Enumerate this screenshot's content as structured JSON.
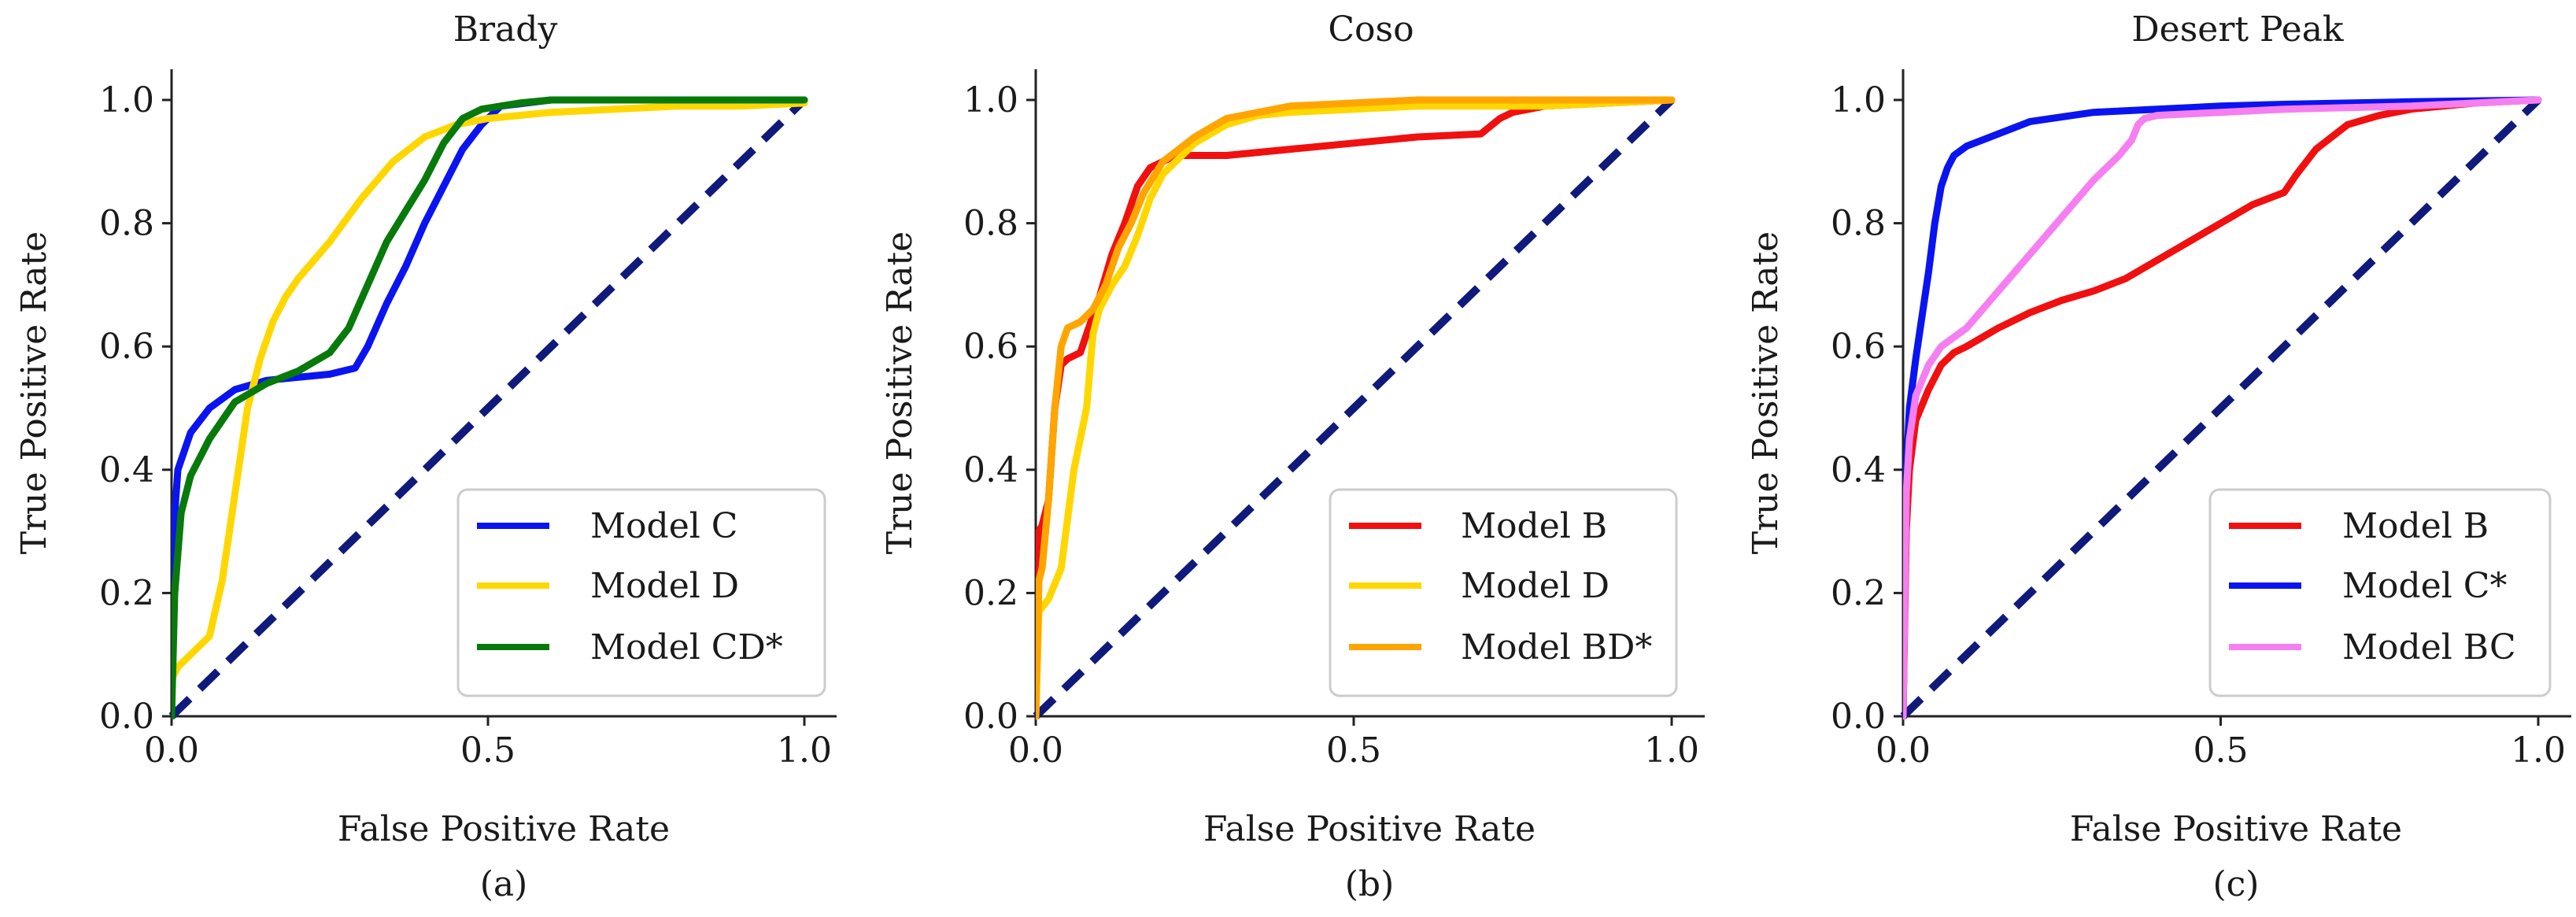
{
  "chart_data": [
    {
      "type": "line",
      "title": "Brady",
      "xlabel": "False Positive Rate",
      "ylabel": "True Positive Rate",
      "caption": "(a)",
      "xlim": [
        0,
        1.05
      ],
      "ylim": [
        0,
        1.05
      ],
      "xticks": [
        "0.0",
        "0.5",
        "1.0"
      ],
      "yticks": [
        "0.0",
        "0.2",
        "0.4",
        "0.6",
        "0.8",
        "1.0"
      ],
      "legend_position": "lower-right",
      "series": [
        {
          "name": "Model C",
          "color": "#0a14f0",
          "x": [
            0,
            0.003,
            0.01,
            0.03,
            0.06,
            0.1,
            0.15,
            0.2,
            0.25,
            0.29,
            0.31,
            0.34,
            0.37,
            0.4,
            0.43,
            0.46,
            0.49,
            0.52,
            0.56,
            0.6,
            0.7,
            0.8,
            1.0
          ],
          "y": [
            0,
            0.3,
            0.4,
            0.46,
            0.5,
            0.53,
            0.545,
            0.55,
            0.555,
            0.565,
            0.6,
            0.67,
            0.73,
            0.8,
            0.86,
            0.92,
            0.96,
            0.99,
            0.995,
            1.0,
            1.0,
            1.0,
            1.0
          ]
        },
        {
          "name": "Model D",
          "color": "#ffd700",
          "x": [
            0,
            0.01,
            0.03,
            0.06,
            0.08,
            0.1,
            0.12,
            0.14,
            0.16,
            0.18,
            0.2,
            0.25,
            0.3,
            0.35,
            0.4,
            0.45,
            0.5,
            0.6,
            0.7,
            0.8,
            0.9,
            1.0
          ],
          "y": [
            0.06,
            0.08,
            0.1,
            0.13,
            0.22,
            0.36,
            0.5,
            0.58,
            0.64,
            0.68,
            0.71,
            0.77,
            0.84,
            0.9,
            0.94,
            0.96,
            0.97,
            0.98,
            0.985,
            0.99,
            0.99,
            0.995
          ]
        },
        {
          "name": "Model CD*",
          "color": "#087a0b",
          "x": [
            0,
            0.005,
            0.015,
            0.03,
            0.06,
            0.1,
            0.15,
            0.2,
            0.25,
            0.28,
            0.31,
            0.34,
            0.37,
            0.4,
            0.43,
            0.46,
            0.49,
            0.52,
            0.55,
            0.6,
            0.7,
            0.8,
            1.0
          ],
          "y": [
            0,
            0.2,
            0.33,
            0.39,
            0.45,
            0.51,
            0.54,
            0.56,
            0.59,
            0.63,
            0.7,
            0.77,
            0.82,
            0.87,
            0.93,
            0.97,
            0.985,
            0.99,
            0.995,
            1.0,
            1.0,
            1.0,
            1.0
          ]
        }
      ]
    },
    {
      "type": "line",
      "title": "Coso",
      "xlabel": "False Positive Rate",
      "ylabel": "True Positive Rate",
      "caption": "(b)",
      "xlim": [
        0,
        1.05
      ],
      "ylim": [
        0,
        1.05
      ],
      "xticks": [
        "0.0",
        "0.5",
        "1.0"
      ],
      "yticks": [
        "0.0",
        "0.2",
        "0.4",
        "0.6",
        "0.8",
        "1.0"
      ],
      "legend_position": "lower-right",
      "series": [
        {
          "name": "Model B",
          "color": "#f01010",
          "x": [
            0,
            0.005,
            0.01,
            0.02,
            0.03,
            0.04,
            0.05,
            0.06,
            0.07,
            0.08,
            0.1,
            0.12,
            0.14,
            0.16,
            0.18,
            0.2,
            0.22,
            0.3,
            0.4,
            0.5,
            0.6,
            0.7,
            0.73,
            0.75,
            0.8,
            0.9,
            1.0
          ],
          "y": [
            0,
            0.3,
            0.31,
            0.35,
            0.5,
            0.57,
            0.58,
            0.585,
            0.59,
            0.62,
            0.68,
            0.75,
            0.8,
            0.86,
            0.89,
            0.9,
            0.91,
            0.91,
            0.92,
            0.93,
            0.94,
            0.945,
            0.97,
            0.98,
            0.99,
            0.995,
            1.0
          ]
        },
        {
          "name": "Model D",
          "color": "#ffd700",
          "x": [
            0,
            0.005,
            0.02,
            0.04,
            0.06,
            0.08,
            0.09,
            0.1,
            0.12,
            0.14,
            0.16,
            0.18,
            0.2,
            0.25,
            0.3,
            0.35,
            0.4,
            0.5,
            0.6,
            0.8,
            1.0
          ],
          "y": [
            0,
            0.17,
            0.19,
            0.24,
            0.4,
            0.5,
            0.62,
            0.66,
            0.7,
            0.73,
            0.78,
            0.84,
            0.88,
            0.93,
            0.96,
            0.975,
            0.98,
            0.985,
            0.99,
            0.99,
            1.0
          ]
        },
        {
          "name": "Model BD*",
          "color": "#ffa500",
          "x": [
            0,
            0.005,
            0.01,
            0.02,
            0.03,
            0.04,
            0.05,
            0.07,
            0.09,
            0.11,
            0.13,
            0.15,
            0.17,
            0.2,
            0.25,
            0.3,
            0.35,
            0.4,
            0.5,
            0.6,
            0.8,
            1.0
          ],
          "y": [
            0,
            0.22,
            0.24,
            0.35,
            0.5,
            0.6,
            0.63,
            0.64,
            0.66,
            0.7,
            0.76,
            0.8,
            0.85,
            0.9,
            0.94,
            0.97,
            0.98,
            0.99,
            0.995,
            1.0,
            1.0,
            1.0
          ]
        }
      ]
    },
    {
      "type": "line",
      "title": "Desert Peak",
      "xlabel": "False Positive Rate",
      "ylabel": "True Positive Rate",
      "caption": "(c)",
      "xlim": [
        0,
        1.05
      ],
      "ylim": [
        0,
        1.05
      ],
      "xticks": [
        "0.0",
        "0.5",
        "1.0"
      ],
      "yticks": [
        "0.0",
        "0.2",
        "0.4",
        "0.6",
        "0.8",
        "1.0"
      ],
      "legend_position": "lower-right",
      "series": [
        {
          "name": "Model B",
          "color": "#f01010",
          "x": [
            0,
            0.005,
            0.01,
            0.02,
            0.04,
            0.06,
            0.08,
            0.1,
            0.15,
            0.2,
            0.25,
            0.3,
            0.35,
            0.4,
            0.45,
            0.5,
            0.55,
            0.6,
            0.62,
            0.65,
            0.7,
            0.75,
            0.8,
            0.9,
            1.0
          ],
          "y": [
            0,
            0.3,
            0.4,
            0.48,
            0.53,
            0.57,
            0.59,
            0.6,
            0.63,
            0.655,
            0.675,
            0.69,
            0.71,
            0.74,
            0.77,
            0.8,
            0.83,
            0.85,
            0.88,
            0.92,
            0.96,
            0.975,
            0.985,
            0.995,
            1.0
          ]
        },
        {
          "name": "Model C*",
          "color": "#0a14f0",
          "x": [
            0,
            0.005,
            0.01,
            0.02,
            0.03,
            0.04,
            0.05,
            0.06,
            0.07,
            0.08,
            0.1,
            0.15,
            0.2,
            0.3,
            0.4,
            0.5,
            0.6,
            0.8,
            1.0
          ],
          "y": [
            0,
            0.4,
            0.5,
            0.58,
            0.65,
            0.72,
            0.8,
            0.86,
            0.89,
            0.91,
            0.925,
            0.945,
            0.965,
            0.98,
            0.985,
            0.99,
            0.993,
            0.997,
            1.0
          ]
        },
        {
          "name": "Model BC",
          "color": "#f57ff0",
          "x": [
            0,
            0.005,
            0.01,
            0.02,
            0.04,
            0.06,
            0.1,
            0.15,
            0.2,
            0.25,
            0.3,
            0.34,
            0.36,
            0.37,
            0.38,
            0.4,
            0.5,
            0.6,
            0.8,
            1.0
          ],
          "y": [
            0,
            0.36,
            0.45,
            0.52,
            0.57,
            0.6,
            0.63,
            0.69,
            0.75,
            0.81,
            0.87,
            0.91,
            0.935,
            0.96,
            0.97,
            0.975,
            0.98,
            0.985,
            0.99,
            1.0
          ]
        }
      ]
    }
  ]
}
